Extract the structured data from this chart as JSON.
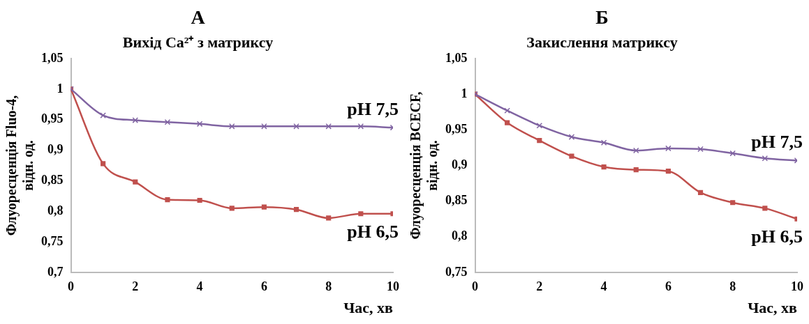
{
  "chart_data": [
    {
      "type": "line",
      "title": "А",
      "subtitle": "Вихід Ca²⁺ з матриксу",
      "xlabel": "Час, хв",
      "ylabel": "Флуоресценція Fluo-4,\nвідн. од.",
      "x": [
        0,
        1,
        2,
        3,
        4,
        5,
        6,
        7,
        8,
        9,
        10
      ],
      "xlim": [
        0,
        10
      ],
      "xticks": [
        0,
        2,
        4,
        6,
        8,
        10
      ],
      "ylim": [
        0.7,
        1.05
      ],
      "yticks": [
        {
          "value": 0.7,
          "label": "0,7"
        },
        {
          "value": 0.75,
          "label": "0,75"
        },
        {
          "value": 0.8,
          "label": "0,8"
        },
        {
          "value": 0.85,
          "label": "0,85"
        },
        {
          "value": 0.9,
          "label": "0,9"
        },
        {
          "value": 0.95,
          "label": "0,95"
        },
        {
          "value": 1,
          "label": "1"
        },
        {
          "value": 1.05,
          "label": "1,05"
        }
      ],
      "grid": false,
      "legend": false,
      "series": [
        {
          "name": "pH 7,5",
          "color": "#8064a2",
          "marker": "cross",
          "values": [
            1,
            0.957,
            0.949,
            0.946,
            0.943,
            0.939,
            0.939,
            0.939,
            0.939,
            0.939,
            0.937
          ]
        },
        {
          "name": "pH 6,5",
          "color": "#c0504d",
          "marker": "square",
          "values": [
            1,
            0.878,
            0.848,
            0.819,
            0.818,
            0.805,
            0.807,
            0.803,
            0.789,
            0.796,
            0.796
          ]
        }
      ]
    },
    {
      "type": "line",
      "title": "Б",
      "subtitle": "Закислення матриксу",
      "xlabel": "Час, хв",
      "ylabel": "Флуоресценція BCECF,\nвідн. од.",
      "x": [
        0,
        1,
        2,
        3,
        4,
        5,
        6,
        7,
        8,
        9,
        10
      ],
      "xlim": [
        0,
        10
      ],
      "xticks": [
        0,
        2,
        4,
        6,
        8,
        10
      ],
      "ylim": [
        0.75,
        1.05
      ],
      "yticks": [
        {
          "value": 0.75,
          "label": "0,75"
        },
        {
          "value": 0.8,
          "label": "0,8"
        },
        {
          "value": 0.85,
          "label": "0,85"
        },
        {
          "value": 0.9,
          "label": "0,9"
        },
        {
          "value": 0.95,
          "label": "0,95"
        },
        {
          "value": 1,
          "label": "1"
        },
        {
          "value": 1.05,
          "label": "1,05"
        }
      ],
      "grid": false,
      "legend": false,
      "series": [
        {
          "name": "pH 7,5",
          "color": "#8064a2",
          "marker": "cross",
          "values": [
            1,
            0.977,
            0.956,
            0.94,
            0.932,
            0.921,
            0.924,
            0.923,
            0.917,
            0.91,
            0.907
          ]
        },
        {
          "name": "pH 6,5",
          "color": "#c0504d",
          "marker": "square",
          "values": [
            1,
            0.96,
            0.935,
            0.913,
            0.898,
            0.894,
            0.892,
            0.862,
            0.848,
            0.84,
            0.825
          ]
        }
      ]
    }
  ]
}
